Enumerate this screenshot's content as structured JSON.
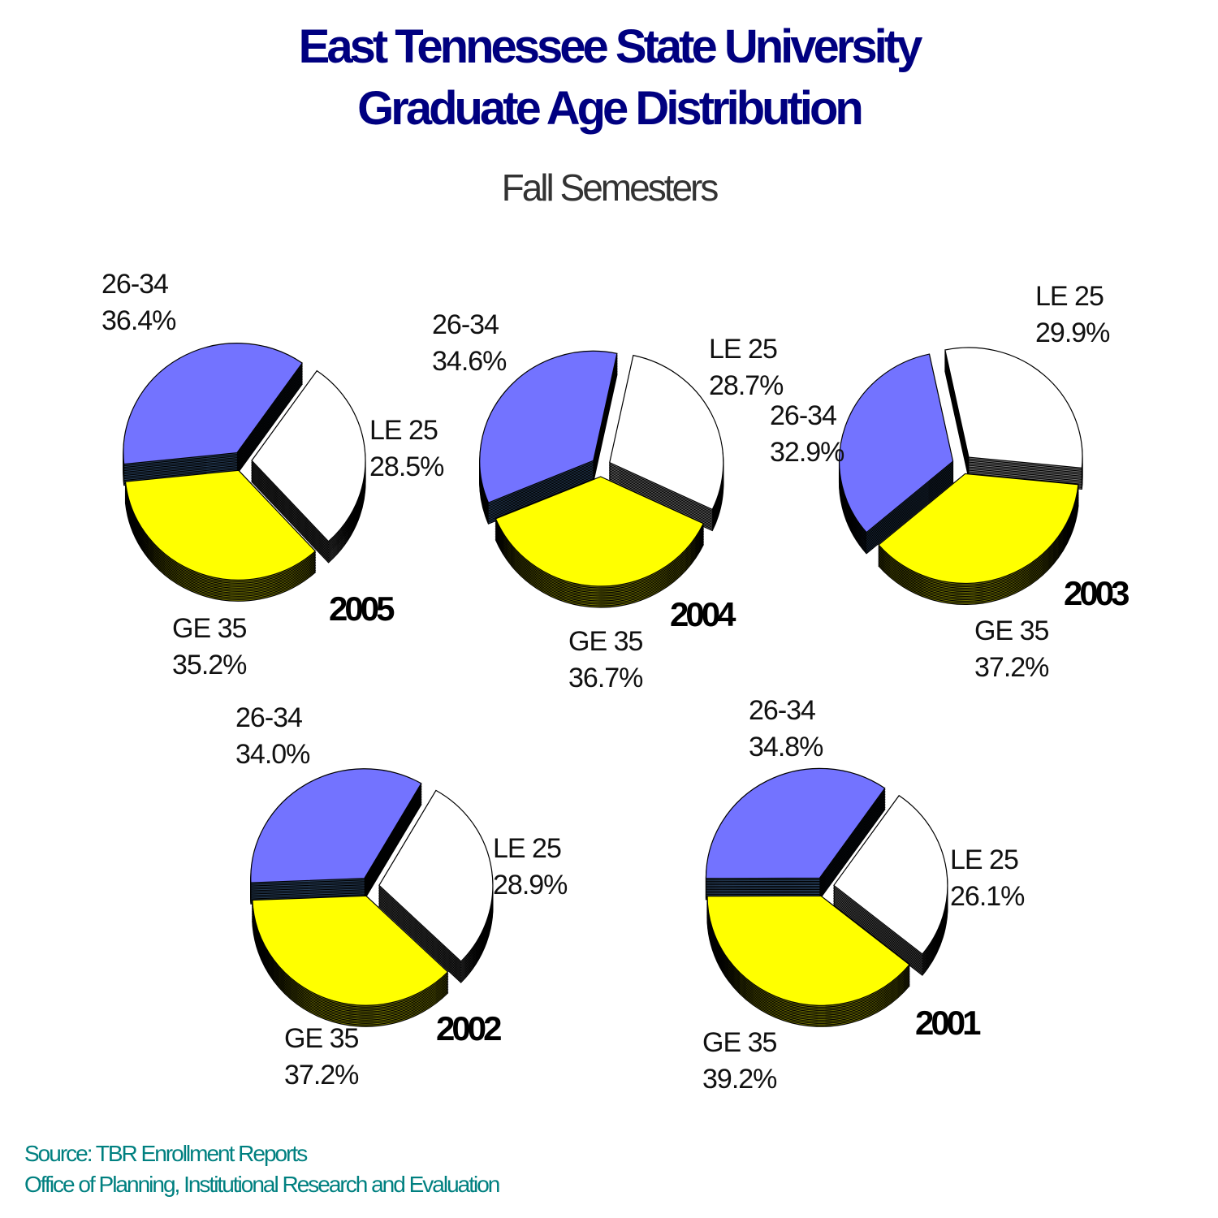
{
  "title_line1": "East Tennessee State University",
  "title_line2": "Graduate Age Distribution",
  "subtitle": "Fall Semesters",
  "footer": {
    "source": "Source:  TBR Enrollment Reports",
    "office": "Office of Planning, Institutional Research and Evaluation"
  },
  "colors": {
    "le25": "#ffffff",
    "ge35": "#ffff00",
    "age2634": "#7373ff",
    "title": "#000080",
    "footer": "#008080"
  },
  "chart_data": [
    {
      "type": "pie",
      "year": "2005",
      "categories": [
        "LE 25",
        "GE 35",
        "26-34"
      ],
      "values": [
        28.5,
        35.2,
        36.4
      ],
      "labels": [
        "28.5%",
        "35.2%",
        "36.4%"
      ]
    },
    {
      "type": "pie",
      "year": "2004",
      "categories": [
        "LE 25",
        "GE 35",
        "26-34"
      ],
      "values": [
        28.7,
        36.7,
        34.6
      ],
      "labels": [
        "28.7%",
        "36.7%",
        "34.6%"
      ]
    },
    {
      "type": "pie",
      "year": "2003",
      "categories": [
        "LE 25",
        "GE 35",
        "26-34"
      ],
      "values": [
        29.9,
        37.2,
        32.9
      ],
      "labels": [
        "29.9%",
        "37.2%",
        "32.9%"
      ]
    },
    {
      "type": "pie",
      "year": "2002",
      "categories": [
        "LE 25",
        "GE 35",
        "26-34"
      ],
      "values": [
        28.9,
        37.2,
        34.0
      ],
      "labels": [
        "28.9%",
        "37.2%",
        "34.0%"
      ]
    },
    {
      "type": "pie",
      "year": "2001",
      "categories": [
        "LE 25",
        "GE 35",
        "26-34"
      ],
      "values": [
        26.1,
        39.2,
        34.8
      ],
      "labels": [
        "26.1%",
        "39.2%",
        "34.8%"
      ]
    }
  ]
}
